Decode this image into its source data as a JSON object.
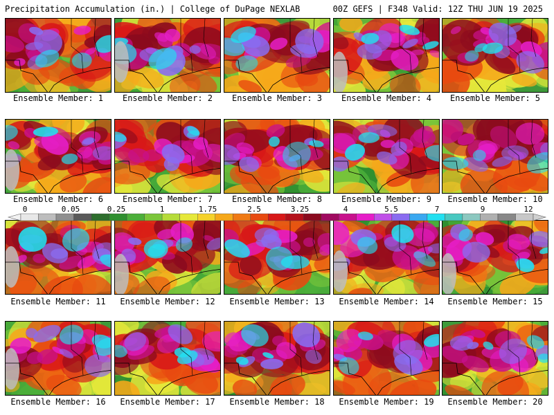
{
  "header": {
    "left_title": "Precipitation Accumulation (in.) | College of DuPage NEXLAB",
    "right_title": "00Z GEFS | F348 Valid: 12Z THU JUN 19 2025"
  },
  "colorbar": {
    "labels": [
      "0",
      "0.05",
      "0.25",
      "1",
      "1.75",
      "2.5",
      "3.25",
      "4",
      "5.5",
      "7",
      "9",
      "12"
    ],
    "colors": [
      "#e8e8e8",
      "#bdbdbd",
      "#8f8f8f",
      "#5a5a5a",
      "#2d6e2d",
      "#2f8f2f",
      "#4caf3a",
      "#7cc63a",
      "#b6dc3a",
      "#e6e83a",
      "#f6d22a",
      "#f6a81a",
      "#f07a14",
      "#e84a10",
      "#d81818",
      "#b4101a",
      "#8a0a1e",
      "#a00a60",
      "#c8108c",
      "#e61ec8",
      "#c050e8",
      "#8a6cf0",
      "#3aa8f0",
      "#22e0f0",
      "#48c8c0",
      "#8cc8c0",
      "#b0b0b0",
      "#888888",
      "#c8c8c8"
    ]
  },
  "members": [
    {
      "caption": "Ensemble Member: 1"
    },
    {
      "caption": "Ensemble Member: 2"
    },
    {
      "caption": "Ensemble Member: 3"
    },
    {
      "caption": "Ensemble Member: 4"
    },
    {
      "caption": "Ensemble Member: 5"
    },
    {
      "caption": "Ensemble Member: 6"
    },
    {
      "caption": "Ensemble Member: 7"
    },
    {
      "caption": "Ensemble Member: 8"
    },
    {
      "caption": "Ensemble Member: 9"
    },
    {
      "caption": "Ensemble Member: 10"
    },
    {
      "caption": "Ensemble Member: 11"
    },
    {
      "caption": "Ensemble Member: 12"
    },
    {
      "caption": "Ensemble Member: 13"
    },
    {
      "caption": "Ensemble Member: 14"
    },
    {
      "caption": "Ensemble Member: 15"
    },
    {
      "caption": "Ensemble Member: 16"
    },
    {
      "caption": "Ensemble Member: 17"
    },
    {
      "caption": "Ensemble Member: 18"
    },
    {
      "caption": "Ensemble Member: 19"
    },
    {
      "caption": "Ensemble Member: 20"
    }
  ]
}
